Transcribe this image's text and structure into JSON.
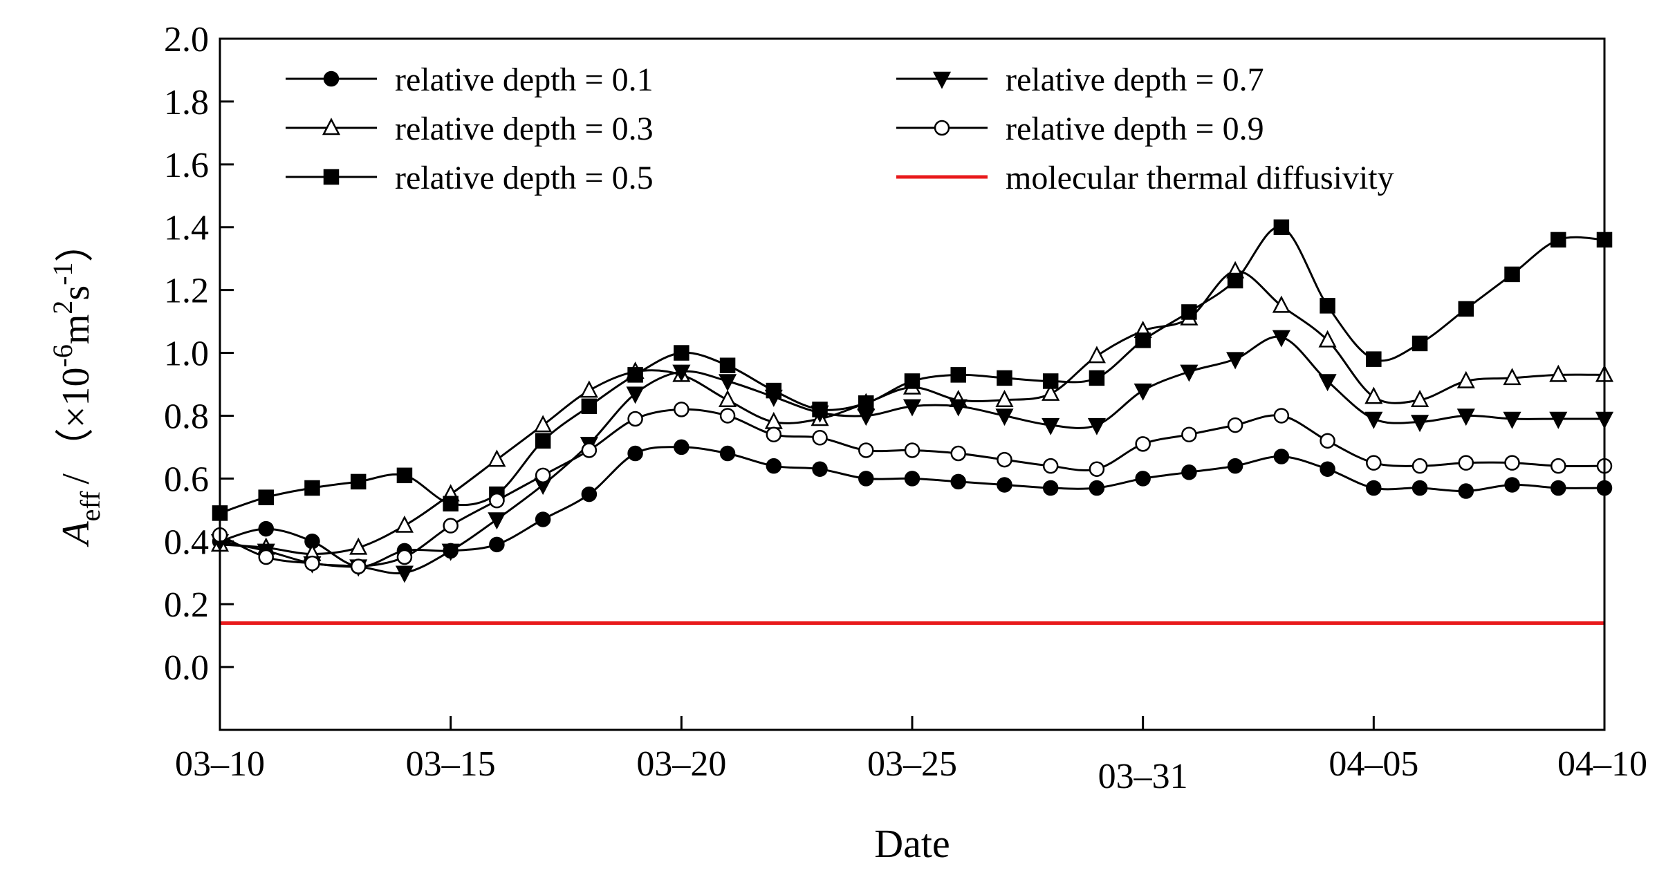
{
  "chart_data": {
    "type": "line",
    "xlabel": "Date",
    "ylabel": {
      "var": "A",
      "sub": "eff",
      "slash": "/",
      "open": "（×10",
      "exp1": "-6",
      "unit1": "m",
      "exp2": "2",
      "unit2": "s",
      "exp3": "-1",
      "close": "）"
    },
    "xlim": [
      0,
      30
    ],
    "ylim": [
      -0.2,
      2.0
    ],
    "yticks": [
      0.0,
      0.2,
      0.4,
      0.6,
      0.8,
      1.0,
      1.2,
      1.4,
      1.6,
      1.8,
      2.0
    ],
    "ytick_labels": [
      "0.0",
      "0.2",
      "0.4",
      "0.6",
      "0.8",
      "1.0",
      "1.2",
      "1.4",
      "1.6",
      "1.8",
      "2.0"
    ],
    "xticks": [
      0,
      5,
      10,
      15,
      20,
      25,
      30
    ],
    "xtick_labels": [
      "03–10",
      "03–15",
      "03–20",
      "03–25",
      "03–31",
      "04–05",
      "04–10"
    ],
    "x": [
      0,
      1,
      2,
      3,
      4,
      5,
      6,
      7,
      8,
      9,
      10,
      11,
      12,
      13,
      14,
      15,
      16,
      17,
      18,
      19,
      20,
      21,
      22,
      23,
      24,
      25,
      26,
      27,
      28,
      29,
      30
    ],
    "series": [
      {
        "name": "relative depth = 0.1",
        "marker": "circle-filled",
        "values": [
          0.4,
          0.44,
          0.4,
          0.32,
          0.37,
          0.37,
          0.39,
          0.47,
          0.55,
          0.68,
          0.7,
          0.68,
          0.64,
          0.63,
          0.6,
          0.6,
          0.59,
          0.58,
          0.57,
          0.57,
          0.6,
          0.62,
          0.64,
          0.67,
          0.63,
          0.57,
          0.57,
          0.56,
          0.58,
          0.57,
          0.57
        ]
      },
      {
        "name": "relative depth = 0.3",
        "marker": "triangle-open",
        "values": [
          0.39,
          0.38,
          0.36,
          0.38,
          0.45,
          0.55,
          0.66,
          0.77,
          0.88,
          0.94,
          0.93,
          0.85,
          0.78,
          0.79,
          0.84,
          0.89,
          0.85,
          0.85,
          0.87,
          0.99,
          1.07,
          1.11,
          1.26,
          1.15,
          1.04,
          0.86,
          0.85,
          0.91,
          0.92,
          0.93,
          0.93
        ]
      },
      {
        "name": "relative depth = 0.5",
        "marker": "square-filled",
        "values": [
          0.49,
          0.54,
          0.57,
          0.59,
          0.61,
          0.52,
          0.55,
          0.72,
          0.83,
          0.93,
          1.0,
          0.96,
          0.88,
          0.82,
          0.84,
          0.91,
          0.93,
          0.92,
          0.91,
          0.92,
          1.04,
          1.13,
          1.23,
          1.4,
          1.15,
          0.98,
          1.03,
          1.14,
          1.25,
          1.36,
          1.36
        ]
      },
      {
        "name": "relative depth = 0.7",
        "marker": "triangle-down-filled",
        "values": [
          0.4,
          0.37,
          0.33,
          0.32,
          0.3,
          0.37,
          0.47,
          0.58,
          0.71,
          0.87,
          0.94,
          0.91,
          0.86,
          0.81,
          0.8,
          0.83,
          0.83,
          0.8,
          0.77,
          0.77,
          0.88,
          0.94,
          0.98,
          1.05,
          0.91,
          0.79,
          0.78,
          0.8,
          0.79,
          0.79,
          0.79
        ]
      },
      {
        "name": "relative depth = 0.9",
        "marker": "circle-open",
        "values": [
          0.42,
          0.35,
          0.33,
          0.32,
          0.35,
          0.45,
          0.53,
          0.61,
          0.69,
          0.79,
          0.82,
          0.8,
          0.74,
          0.73,
          0.69,
          0.69,
          0.68,
          0.66,
          0.64,
          0.63,
          0.71,
          0.74,
          0.77,
          0.8,
          0.72,
          0.65,
          0.64,
          0.65,
          0.65,
          0.64,
          0.64
        ]
      }
    ],
    "reference_line": {
      "name": "molecular thermal diffusivity",
      "value": 0.14,
      "color": "#e8191b"
    },
    "legend": {
      "position": "top",
      "columns": 2
    },
    "grid": false
  }
}
